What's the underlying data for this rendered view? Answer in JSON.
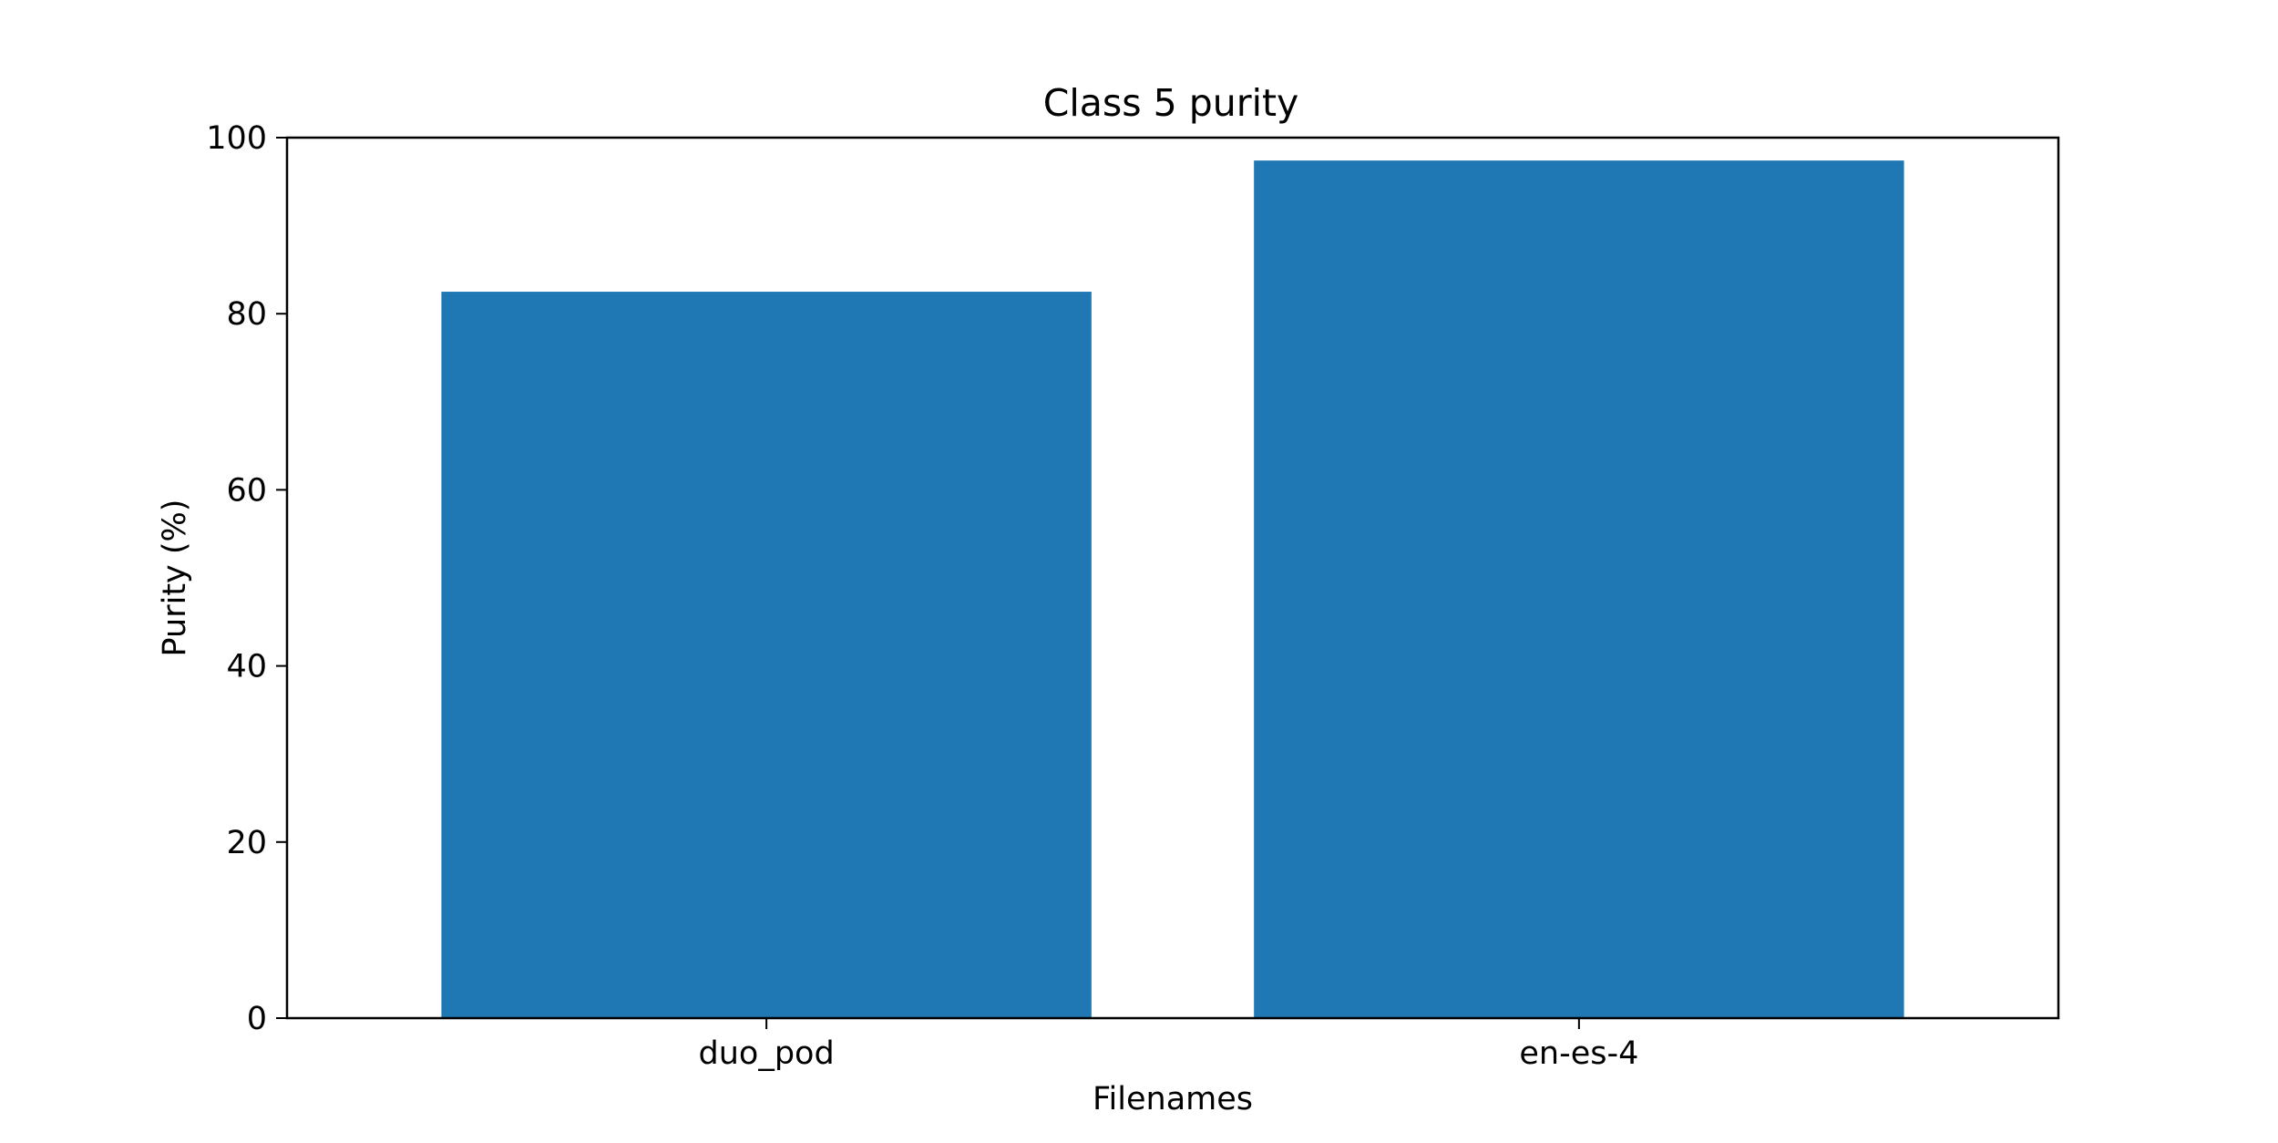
{
  "chart_data": {
    "type": "bar",
    "title": "Class 5 purity",
    "xlabel": "Filenames",
    "ylabel": "Purity (%)",
    "categories": [
      "duo_pod",
      "en-es-4"
    ],
    "values": [
      82.5,
      97.4
    ],
    "ylim": [
      0,
      100
    ],
    "yticks": [
      0,
      20,
      40,
      60,
      80,
      100
    ],
    "grid": false,
    "legend": "none",
    "bar_color": "#1f77b4"
  }
}
